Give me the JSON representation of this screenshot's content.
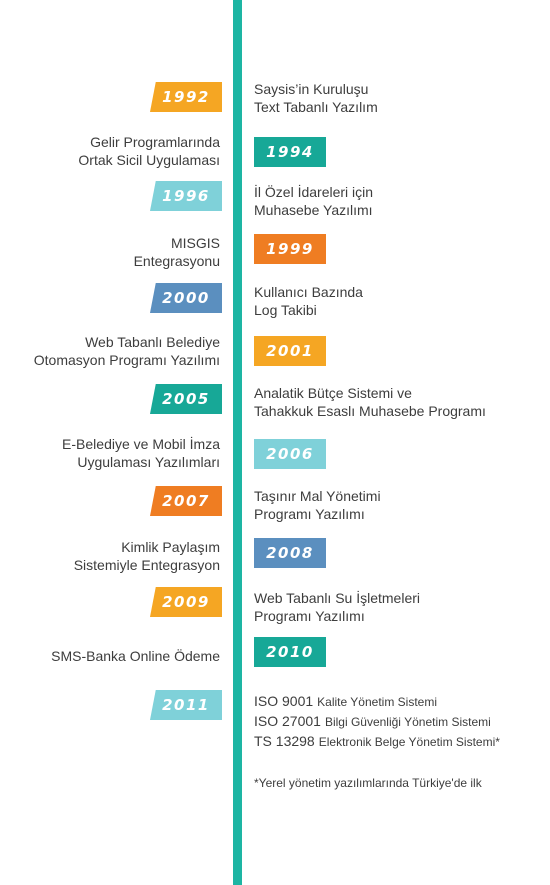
{
  "colors": {
    "axis": "#1db5a3",
    "orange_light": "#f5a623",
    "orange_dark": "#ef7d22",
    "teal_dark": "#17a897",
    "teal_light": "#7fd1d9",
    "blue": "#5b8fbf"
  },
  "items": [
    {
      "year": "1992",
      "text": [
        "Saysis’in Kuruluşu",
        "Text Tabanlı Yazılım"
      ],
      "color": "#f5a623"
    },
    {
      "year": "1994",
      "text": [
        "Gelir Programlarında",
        "Ortak Sicil Uygulaması"
      ],
      "color": "#17a897"
    },
    {
      "year": "1996",
      "text": [
        "İl Özel İdareleri için",
        "Muhasebe Yazılımı"
      ],
      "color": "#7fd1d9"
    },
    {
      "year": "1999",
      "text": [
        "MISGIS",
        "Entegrasyonu"
      ],
      "color": "#ef7d22"
    },
    {
      "year": "2000",
      "text": [
        "Kullanıcı Bazında",
        "Log Takibi"
      ],
      "color": "#5b8fbf"
    },
    {
      "year": "2001",
      "text": [
        "Web Tabanlı Belediye",
        "Otomasyon Programı Yazılımı"
      ],
      "color": "#f5a623"
    },
    {
      "year": "2005",
      "text": [
        "Analatik Bütçe Sistemi ve",
        "Tahakkuk Esaslı Muhasebe Programı"
      ],
      "color": "#17a897"
    },
    {
      "year": "2006",
      "text": [
        "E-Belediye ve Mobil İmza",
        "Uygulaması Yazılımları"
      ],
      "color": "#7fd1d9"
    },
    {
      "year": "2007",
      "text": [
        "Taşınır Mal Yönetimi",
        "Programı Yazılımı"
      ],
      "color": "#ef7d22"
    },
    {
      "year": "2008",
      "text": [
        "Kimlik Paylaşım",
        "Sistemiyle Entegrasyon"
      ],
      "color": "#5b8fbf"
    },
    {
      "year": "2009",
      "text": [
        "Web Tabanlı Su İşletmeleri",
        "Programı Yazılımı"
      ],
      "color": "#f5a623"
    },
    {
      "year": "2010",
      "text": [
        "SMS-Banka Online Ödeme",
        ""
      ],
      "color": "#17a897"
    },
    {
      "year": "2011",
      "text": [
        "",
        ""
      ],
      "color": "#7fd1d9"
    }
  ],
  "iso": [
    {
      "code": "ISO 9001",
      "desc": "Kalite Yönetim Sistemi"
    },
    {
      "code": "ISO 27001",
      "desc": "Bilgi Güvenliği Yönetim Sistemi"
    },
    {
      "code": "TS 13298",
      "desc": "Elektronik Belge Yönetim Sistemi*"
    }
  ],
  "footnote": "*Yerel yönetim yazılımlarında Türkiye'de ilk"
}
